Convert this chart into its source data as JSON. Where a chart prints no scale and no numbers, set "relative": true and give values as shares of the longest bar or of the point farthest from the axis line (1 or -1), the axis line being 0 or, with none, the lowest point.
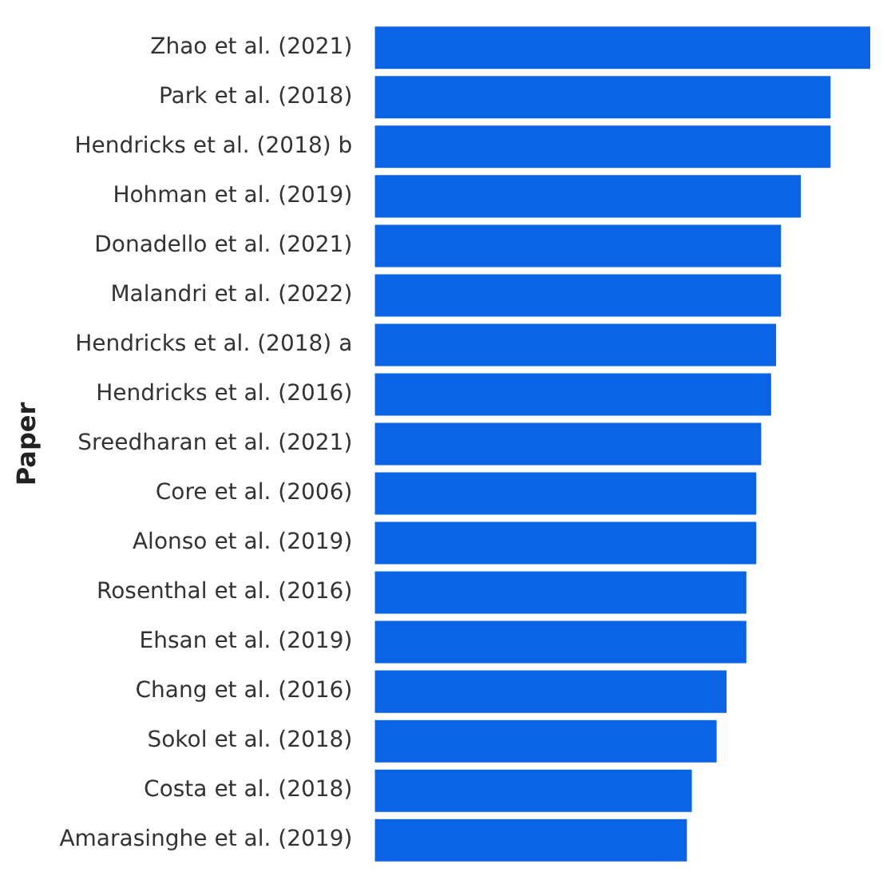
{
  "chart_data": {
    "type": "bar",
    "orientation": "horizontal",
    "relative": true,
    "ylabel": "Paper",
    "color": "#0b64e6",
    "categories": [
      "Zhao et al. (2021)",
      "Park et al. (2018)",
      "Hendricks et al. (2018) b",
      "Hohman et al. (2019)",
      "Donadello et al. (2021)",
      "Malandri et al. (2022)",
      "Hendricks et al. (2018) a",
      "Hendricks et al. (2016)",
      "Sreedharan et al. (2021)",
      "Core et al. (2006)",
      "Alonso et al. (2019)",
      "Rosenthal et al. (2016)",
      "Ehsan et al. (2019)",
      "Chang et al. (2016)",
      "Sokol et al. (2018)",
      "Costa et al. (2018)",
      "Amarasinghe et al. (2019)"
    ],
    "values": [
      1,
      0.92,
      0.92,
      0.86,
      0.82,
      0.82,
      0.81,
      0.8,
      0.78,
      0.77,
      0.77,
      0.75,
      0.75,
      0.71,
      0.69,
      0.64,
      0.63
    ],
    "legend": false
  }
}
